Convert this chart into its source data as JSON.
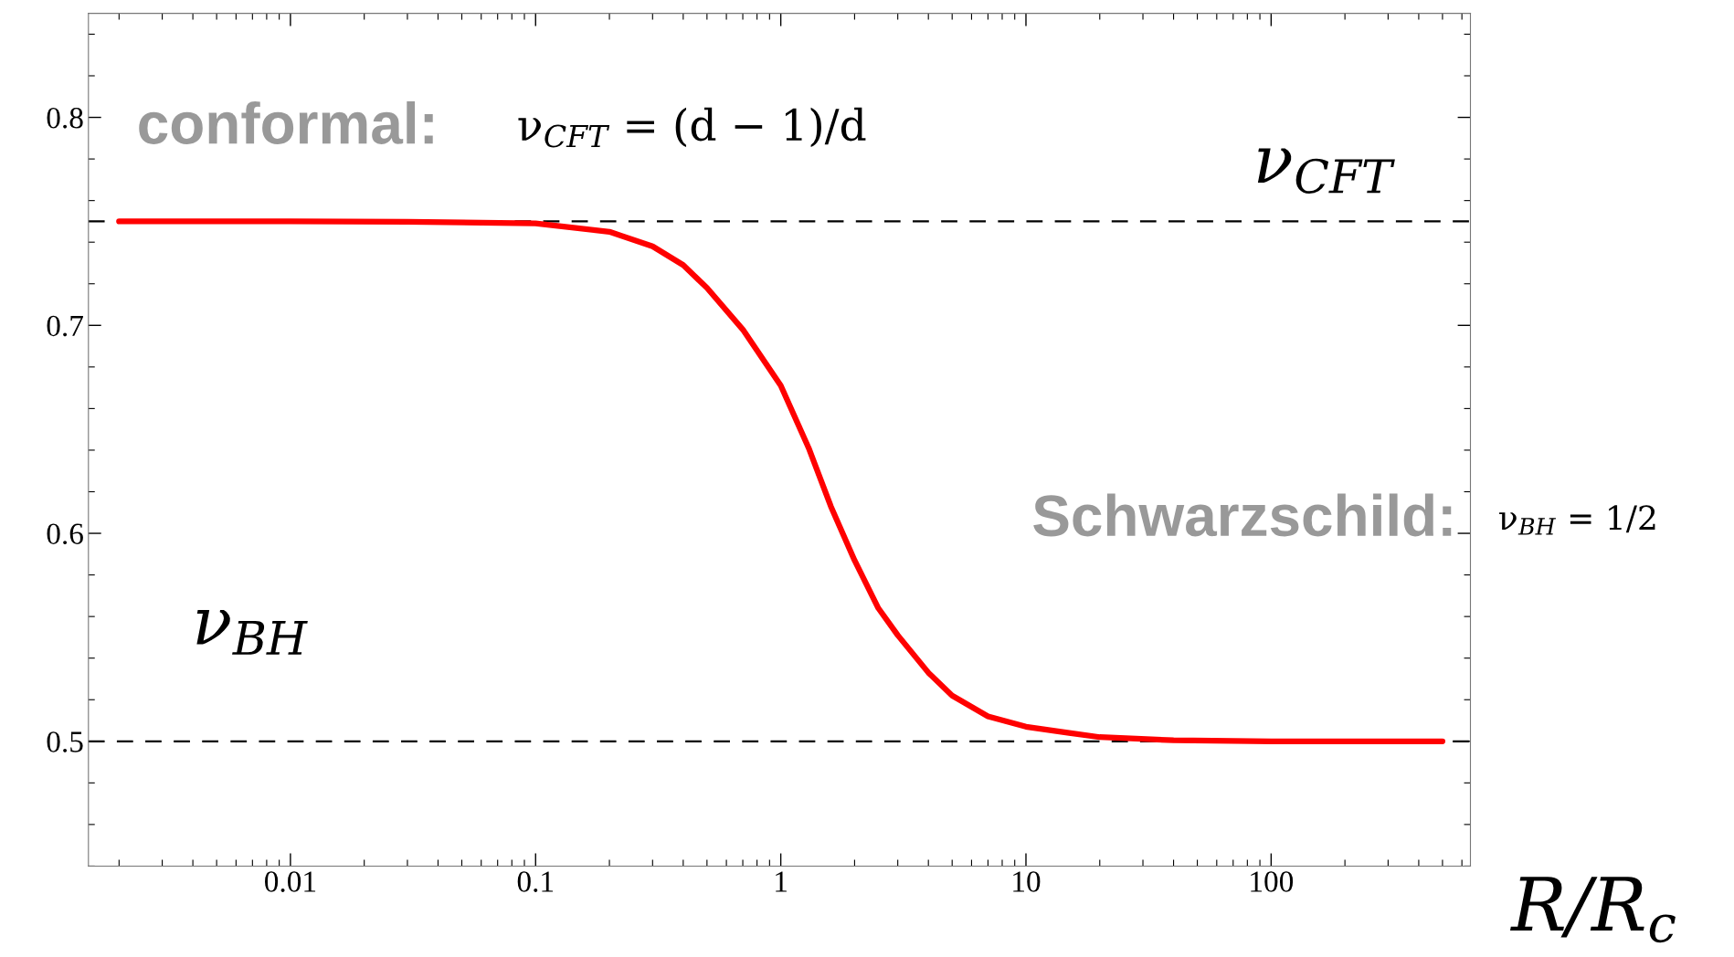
{
  "chart_data": {
    "type": "line",
    "xlabel": "R/R$_{c}$",
    "log": "x",
    "xlim": [
      0.0015,
      650
    ],
    "ylim": [
      0.44,
      0.85
    ],
    "xticks": [
      0.01,
      0.1,
      1,
      10,
      100
    ],
    "yticks": [
      0.5,
      0.6,
      0.7,
      0.8
    ],
    "grid": false,
    "legend": false,
    "marker": "none",
    "line_style": "solid",
    "series": [
      {
        "color": "#ff0000",
        "x": [
          0.002,
          0.01,
          0.03,
          0.1,
          0.2,
          0.3,
          0.4,
          0.5,
          0.7,
          1,
          1.3,
          1.6,
          2,
          2.5,
          3,
          4,
          5,
          7,
          10,
          15,
          20,
          40,
          100,
          500
        ],
        "values": [
          0.75,
          0.75,
          0.7498,
          0.749,
          0.745,
          0.738,
          0.729,
          0.718,
          0.698,
          0.671,
          0.641,
          0.613,
          0.587,
          0.564,
          0.551,
          0.533,
          0.522,
          0.512,
          0.507,
          0.504,
          0.502,
          0.5005,
          0.5,
          0.5
        ]
      }
    ],
    "ref_lines": [
      {
        "axis": "y",
        "value": 0.75,
        "label": "ν$_{CFT}$",
        "color": "#000000",
        "line_style": "dashed"
      },
      {
        "axis": "y",
        "value": 0.5,
        "label": "ν$_{BH}$",
        "color": "#000000",
        "line_style": "dashed"
      }
    ],
    "annotations": [
      "conformal:",
      "ν$_{CFT}$ = (d − 1)/d",
      "Schwarzschild:",
      "ν$_{BH}$ = 1/2"
    ]
  }
}
